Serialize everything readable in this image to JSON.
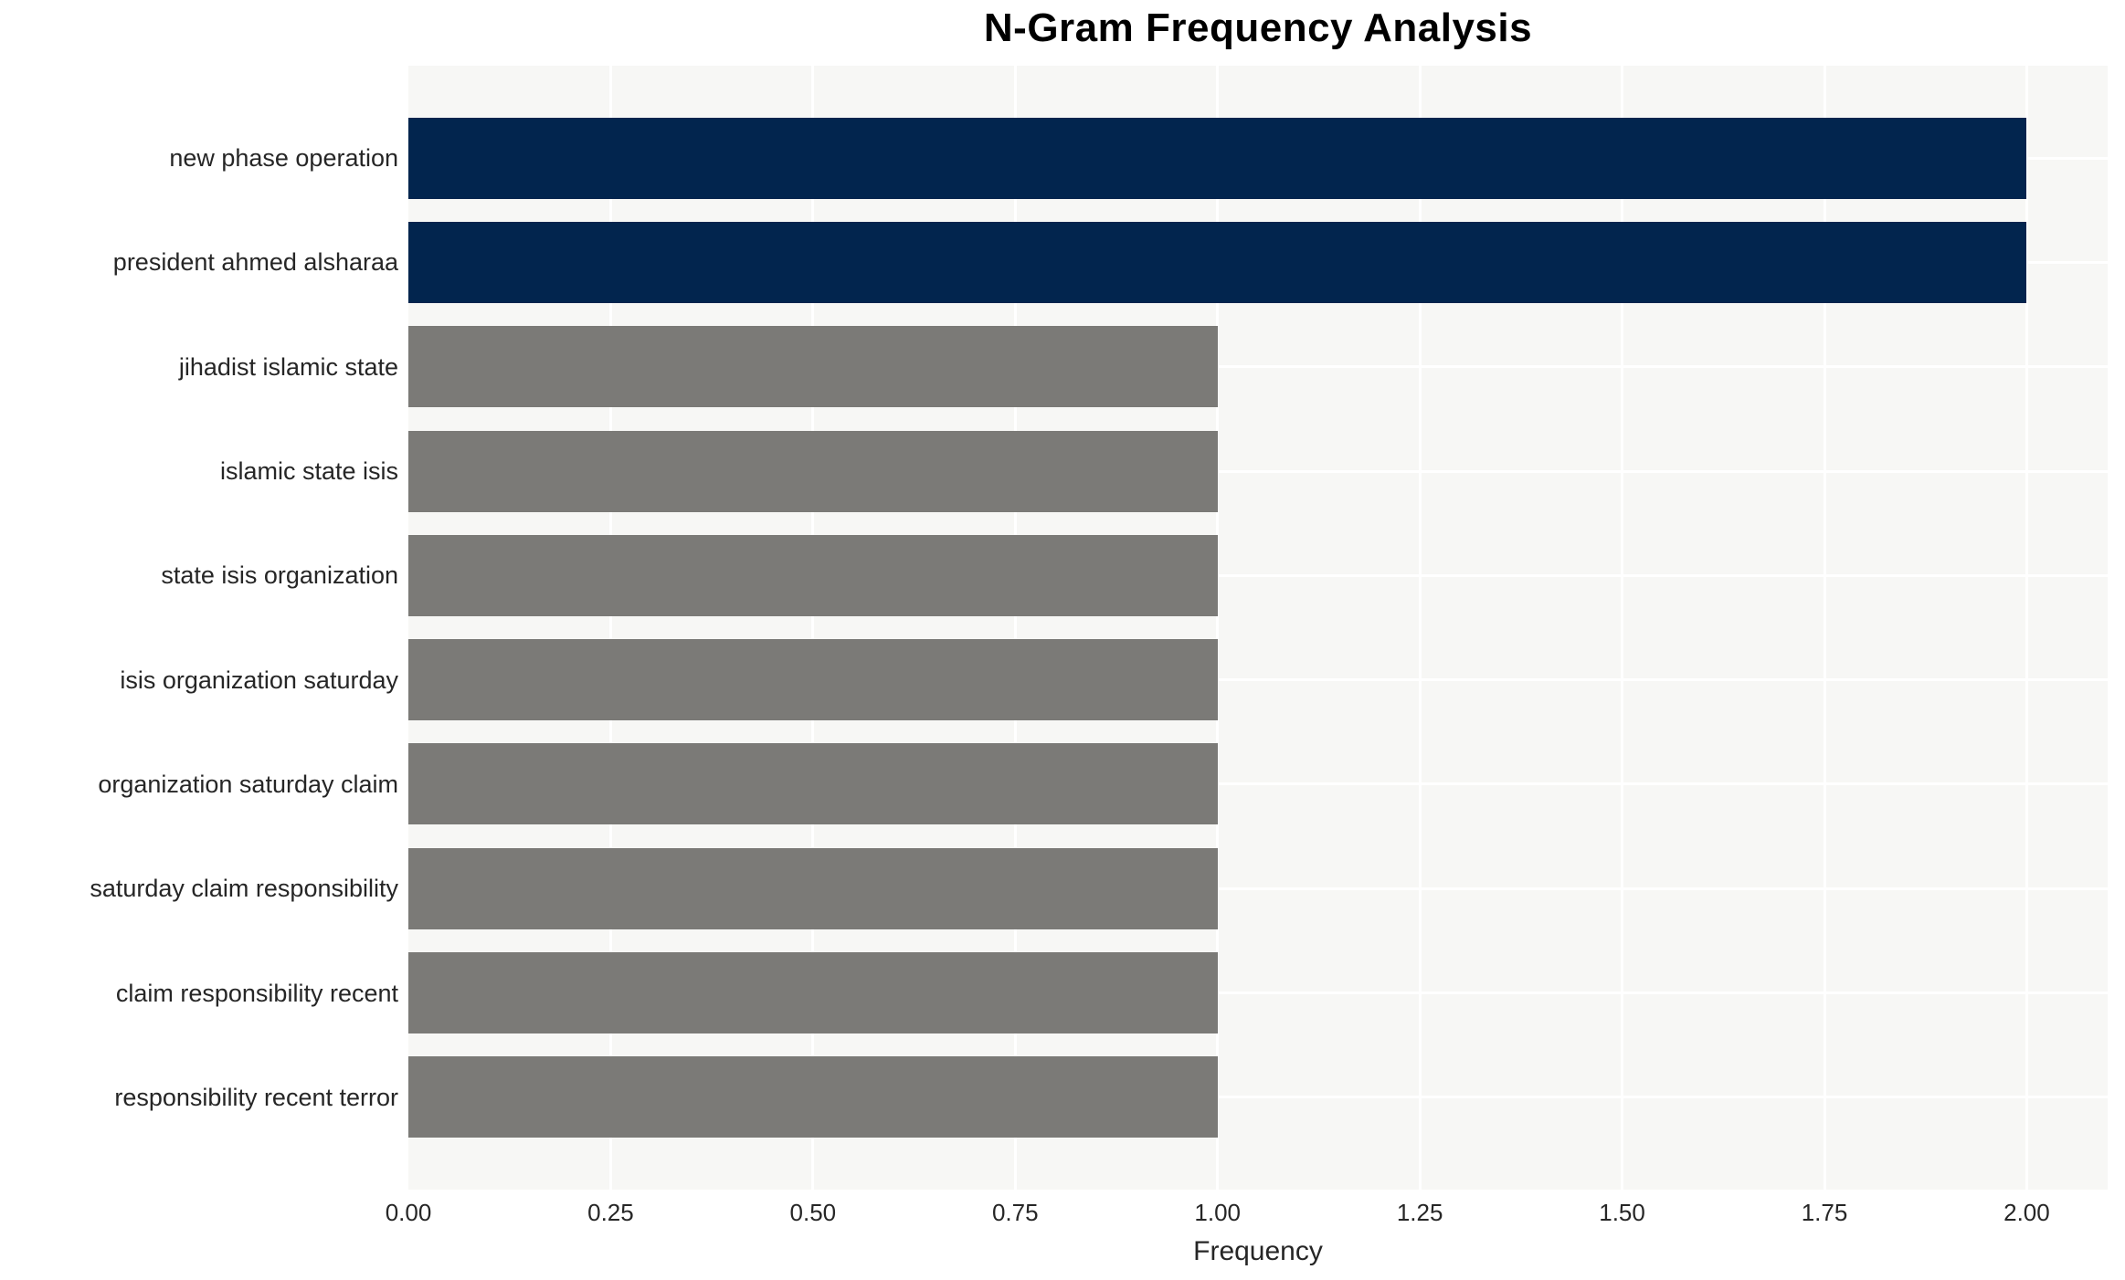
{
  "chart_data": {
    "type": "bar",
    "orientation": "horizontal",
    "title": "N-Gram Frequency Analysis",
    "xlabel": "Frequency",
    "ylabel": "",
    "categories": [
      "new phase operation",
      "president ahmed alsharaa",
      "jihadist islamic state",
      "islamic state isis",
      "state isis organization",
      "isis organization saturday",
      "organization saturday claim",
      "saturday claim responsibility",
      "claim responsibility recent",
      "responsibility recent terror"
    ],
    "values": [
      2,
      2,
      1,
      1,
      1,
      1,
      1,
      1,
      1,
      1
    ],
    "bar_colors": [
      "#02254E",
      "#02254E",
      "#7B7A77",
      "#7B7A77",
      "#7B7A77",
      "#7B7A77",
      "#7B7A77",
      "#7B7A77",
      "#7B7A77",
      "#7B7A77"
    ],
    "xlim": [
      0,
      2.1
    ],
    "xticks": {
      "values": [
        0,
        0.25,
        0.5,
        0.75,
        1.0,
        1.25,
        1.5,
        1.75,
        2.0
      ],
      "labels": [
        "0.00",
        "0.25",
        "0.50",
        "0.75",
        "1.00",
        "1.25",
        "1.50",
        "1.75",
        "2.00"
      ]
    },
    "grid": {
      "show": true,
      "color": "#FFFFFF",
      "vertical_every": 0.25,
      "horizontal_at_category_centers": true
    },
    "colors": {
      "highlight": "#02254E",
      "default": "#7B7A77",
      "plot_background": "#F7F7F5",
      "page_background": "#FFFFFF",
      "text": "#262626",
      "title": "#000000"
    },
    "legend_position": "none"
  }
}
